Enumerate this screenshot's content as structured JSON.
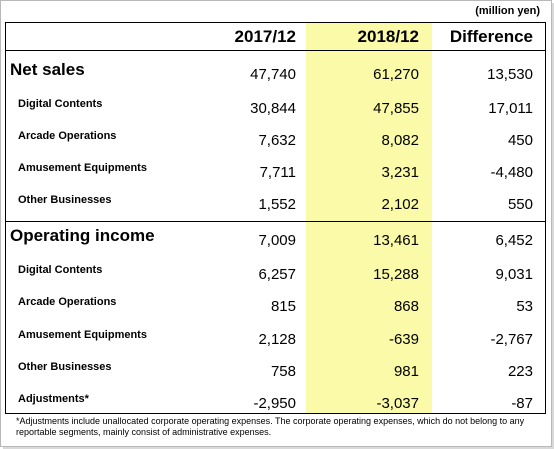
{
  "unit": "(million yen)",
  "columns": [
    "2017/12",
    "2018/12",
    "Difference"
  ],
  "sections": [
    {
      "title": "Net sales",
      "values": [
        "47,740",
        "61,270",
        "13,530"
      ],
      "rows": [
        {
          "label": "Digital Contents",
          "values": [
            "30,844",
            "47,855",
            "17,011"
          ]
        },
        {
          "label": "Arcade Operations",
          "values": [
            "7,632",
            "8,082",
            "450"
          ]
        },
        {
          "label": "Amusement Equipments",
          "values": [
            "7,711",
            "3,231",
            "-4,480"
          ]
        },
        {
          "label": "Other Businesses",
          "values": [
            "1,552",
            "2,102",
            "550"
          ]
        }
      ]
    },
    {
      "title": "Operating income",
      "values": [
        "7,009",
        "13,461",
        "6,452"
      ],
      "rows": [
        {
          "label": "Digital Contents",
          "values": [
            "6,257",
            "15,288",
            "9,031"
          ]
        },
        {
          "label": "Arcade Operations",
          "values": [
            "815",
            "868",
            "53"
          ]
        },
        {
          "label": "Amusement Equipments",
          "values": [
            "2,128",
            "-639",
            "-2,767"
          ]
        },
        {
          "label": "Other Businesses",
          "values": [
            "758",
            "981",
            "223"
          ]
        },
        {
          "label": "Adjustments*",
          "values": [
            "-2,950",
            "-3,037",
            "-87"
          ]
        }
      ]
    }
  ],
  "footnote": "*Adjustments include unallocated corporate operating expenses. The corporate operating expenses, which do not belong to any reportable segments, mainly consist of administrative expenses.",
  "colors": {
    "highlight": "#fafaa8",
    "border": "#000000"
  }
}
